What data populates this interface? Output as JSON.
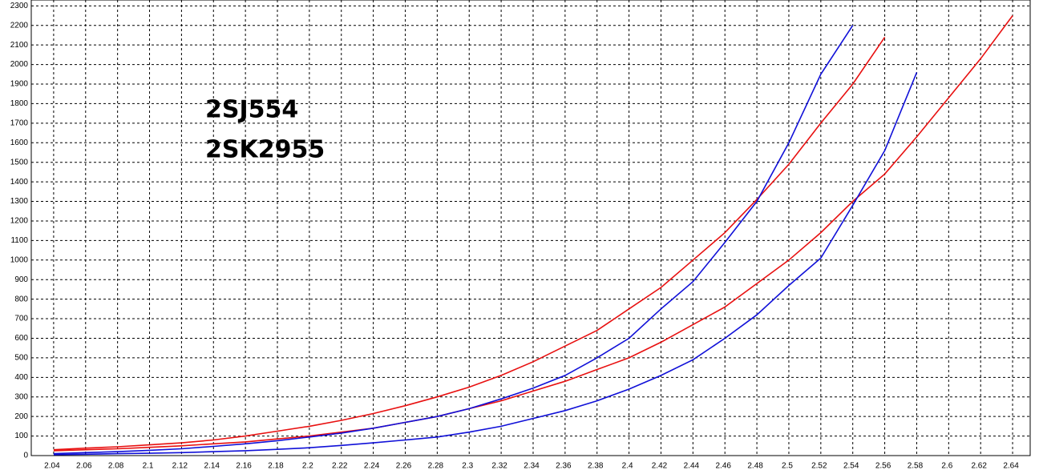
{
  "chart_data": {
    "type": "line",
    "x": [
      2.04,
      2.06,
      2.08,
      2.1,
      2.12,
      2.14,
      2.16,
      2.18,
      2.2,
      2.22,
      2.24,
      2.26,
      2.28,
      2.3,
      2.32,
      2.34,
      2.36,
      2.38,
      2.4,
      2.42,
      2.44,
      2.46,
      2.48,
      2.5,
      2.52,
      2.54,
      2.56,
      2.58,
      2.6,
      2.62,
      2.64
    ],
    "series": [
      {
        "name": "2SJ554",
        "color": "#e81010",
        "values": [
          [
            30,
            38,
            45,
            55,
            65,
            80,
            100,
            125,
            150,
            180,
            215,
            255,
            300,
            350,
            410,
            480,
            560,
            640,
            750,
            860,
            1000,
            1140,
            1310,
            1490,
            1700,
            1900,
            2140,
            null,
            null,
            null,
            null
          ],
          [
            25,
            30,
            35,
            42,
            50,
            60,
            70,
            85,
            100,
            120,
            140,
            170,
            200,
            240,
            280,
            330,
            380,
            440,
            500,
            580,
            670,
            760,
            880,
            1000,
            1140,
            1300,
            1440,
            1630,
            1830,
            2030,
            2250
          ]
        ]
      },
      {
        "name": "2SK2955",
        "color": "#1010d8",
        "values": [
          [
            10,
            15,
            20,
            27,
            35,
            47,
            60,
            76,
            95,
            115,
            140,
            170,
            200,
            240,
            290,
            345,
            410,
            500,
            600,
            750,
            890,
            1090,
            1300,
            1600,
            1950,
            2200,
            null,
            null,
            null,
            null,
            null
          ],
          [
            5,
            7,
            10,
            12,
            15,
            20,
            25,
            32,
            40,
            52,
            65,
            80,
            95,
            120,
            150,
            190,
            230,
            280,
            340,
            410,
            490,
            600,
            720,
            870,
            1010,
            1280,
            1560,
            1960,
            null,
            null,
            null
          ]
        ]
      }
    ],
    "xlim": [
      2.026,
      2.651
    ],
    "ylim": [
      0,
      2330
    ],
    "xticks": [
      2.04,
      2.06,
      2.08,
      2.1,
      2.12,
      2.14,
      2.16,
      2.18,
      2.2,
      2.22,
      2.24,
      2.26,
      2.28,
      2.3,
      2.32,
      2.34,
      2.36,
      2.38,
      2.4,
      2.42,
      2.44,
      2.46,
      2.48,
      2.5,
      2.52,
      2.54,
      2.56,
      2.58,
      2.6,
      2.62,
      2.64
    ],
    "yticks": [
      0,
      100,
      200,
      300,
      400,
      500,
      600,
      700,
      800,
      900,
      1000,
      1100,
      1200,
      1300,
      1400,
      1500,
      1600,
      1700,
      1800,
      1900,
      2000,
      2100,
      2200,
      2300
    ],
    "grid": true
  }
}
